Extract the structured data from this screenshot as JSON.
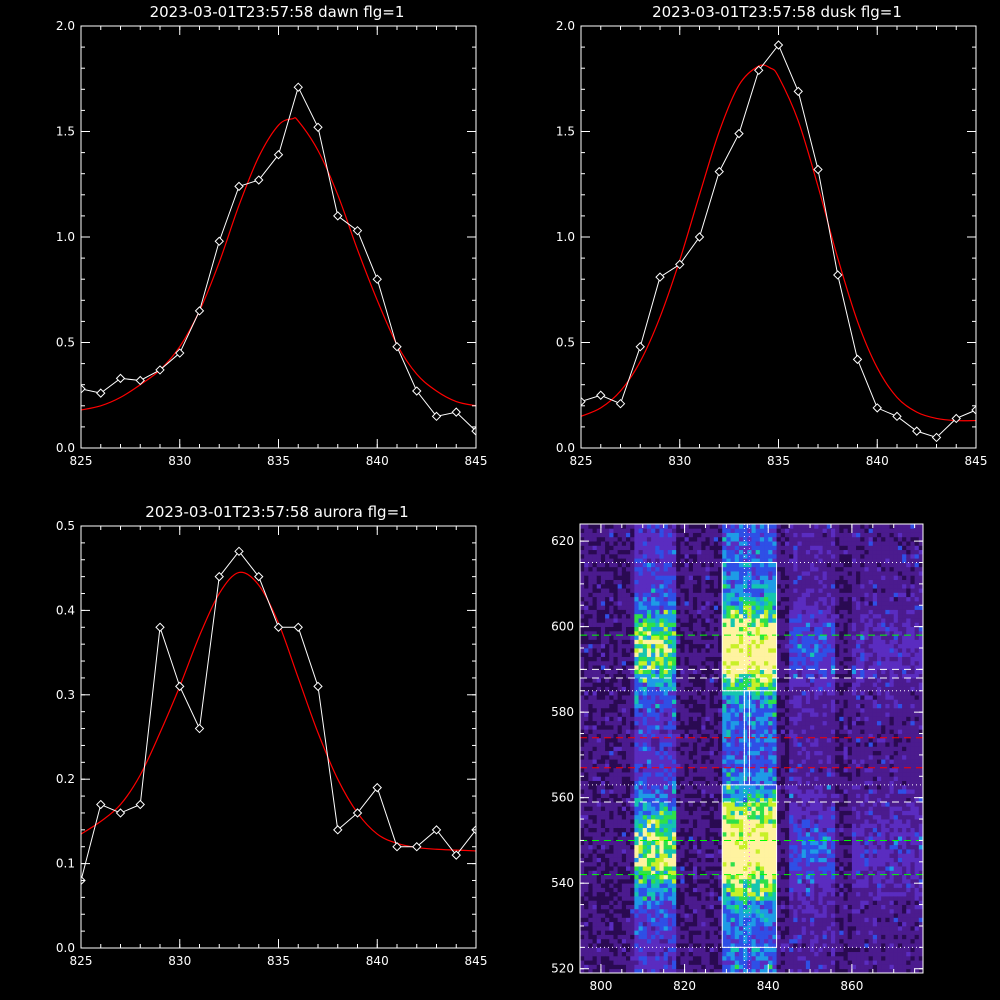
{
  "chart_data": [
    {
      "type": "line",
      "title": "2023-03-01T23:57:58 dawn flg=1",
      "xlim": [
        825,
        845
      ],
      "ylim": [
        0.0,
        2.0
      ],
      "xticks": [
        825,
        830,
        835,
        840,
        845
      ],
      "xtick_labels": [
        "825",
        "830",
        "835",
        "840",
        "845"
      ],
      "yticks": [
        0.0,
        0.5,
        1.0,
        1.5,
        2.0
      ],
      "ytick_labels": [
        "0.0",
        "0.5",
        "1.0",
        "1.5",
        "2.0"
      ],
      "series": [
        {
          "kind": "observed",
          "color": "#ffffff",
          "marker": "diamond",
          "x": [
            825,
            826,
            827,
            828,
            829,
            830,
            831,
            832,
            833,
            834,
            835,
            836,
            837,
            838,
            839,
            840,
            841,
            842,
            843,
            844,
            845
          ],
          "y": [
            0.28,
            0.26,
            0.33,
            0.32,
            0.37,
            0.45,
            0.65,
            0.98,
            1.24,
            1.27,
            1.39,
            1.71,
            1.52,
            1.1,
            1.03,
            0.8,
            0.48,
            0.27,
            0.15,
            0.17,
            0.08
          ]
        },
        {
          "kind": "fit",
          "color": "#ff0000",
          "marker": "none",
          "x": [
            825,
            826,
            827,
            828,
            829,
            830,
            831,
            832,
            833,
            834,
            835,
            835.7,
            836,
            837,
            838,
            839,
            840,
            841,
            842,
            843,
            844,
            845
          ],
          "y": [
            0.18,
            0.2,
            0.24,
            0.3,
            0.37,
            0.48,
            0.65,
            0.88,
            1.15,
            1.38,
            1.53,
            1.56,
            1.55,
            1.41,
            1.2,
            0.94,
            0.7,
            0.49,
            0.35,
            0.27,
            0.22,
            0.2
          ]
        }
      ]
    },
    {
      "type": "line",
      "title": "2023-03-01T23:57:58 dusk flg=1",
      "xlim": [
        825,
        845
      ],
      "ylim": [
        0.0,
        2.0
      ],
      "xticks": [
        825,
        830,
        835,
        840,
        845
      ],
      "xtick_labels": [
        "825",
        "830",
        "835",
        "840",
        "845"
      ],
      "yticks": [
        0.0,
        0.5,
        1.0,
        1.5,
        2.0
      ],
      "ytick_labels": [
        "0.0",
        "0.5",
        "1.0",
        "1.5",
        "2.0"
      ],
      "series": [
        {
          "kind": "observed",
          "color": "#ffffff",
          "marker": "diamond",
          "x": [
            825,
            826,
            827,
            828,
            829,
            830,
            831,
            832,
            833,
            834,
            835,
            836,
            837,
            838,
            839,
            840,
            841,
            842,
            843,
            844,
            845
          ],
          "y": [
            0.22,
            0.25,
            0.21,
            0.48,
            0.81,
            0.87,
            1.0,
            1.31,
            1.49,
            1.79,
            1.91,
            1.69,
            1.32,
            0.82,
            0.42,
            0.19,
            0.15,
            0.08,
            0.05,
            0.14,
            0.18
          ]
        },
        {
          "kind": "fit",
          "color": "#ff0000",
          "marker": "none",
          "x": [
            825,
            826,
            827,
            828,
            829,
            830,
            831,
            832,
            833,
            834,
            834.6,
            835,
            836,
            837,
            838,
            839,
            840,
            841,
            842,
            843,
            844,
            845
          ],
          "y": [
            0.15,
            0.19,
            0.27,
            0.41,
            0.62,
            0.89,
            1.2,
            1.5,
            1.72,
            1.81,
            1.8,
            1.76,
            1.55,
            1.24,
            0.9,
            0.6,
            0.38,
            0.24,
            0.17,
            0.14,
            0.13,
            0.13
          ]
        }
      ]
    },
    {
      "type": "line",
      "title": "2023-03-01T23:57:58 aurora flg=1",
      "xlim": [
        825,
        845
      ],
      "ylim": [
        0.0,
        0.5
      ],
      "xticks": [
        825,
        830,
        835,
        840,
        845
      ],
      "xtick_labels": [
        "825",
        "830",
        "835",
        "840",
        "845"
      ],
      "yticks": [
        0.0,
        0.1,
        0.2,
        0.3,
        0.4,
        0.5
      ],
      "ytick_labels": [
        "0.0",
        "0.1",
        "0.2",
        "0.3",
        "0.4",
        "0.5"
      ],
      "series": [
        {
          "kind": "observed",
          "color": "#ffffff",
          "marker": "diamond",
          "x": [
            825,
            826,
            827,
            828,
            829,
            830,
            831,
            832,
            833,
            834,
            835,
            836,
            837,
            838,
            839,
            840,
            841,
            842,
            843,
            844,
            845
          ],
          "y": [
            0.08,
            0.17,
            0.16,
            0.17,
            0.38,
            0.31,
            0.26,
            0.44,
            0.47,
            0.44,
            0.38,
            0.38,
            0.31,
            0.14,
            0.16,
            0.19,
            0.12,
            0.12,
            0.14,
            0.11,
            0.14
          ]
        },
        {
          "kind": "fit",
          "color": "#ff0000",
          "marker": "none",
          "x": [
            825,
            826,
            827,
            828,
            829,
            830,
            831,
            832,
            833,
            834,
            835,
            836,
            837,
            838,
            839,
            840,
            841,
            842,
            843,
            844,
            845
          ],
          "y": [
            0.135,
            0.15,
            0.17,
            0.205,
            0.255,
            0.31,
            0.37,
            0.42,
            0.445,
            0.43,
            0.385,
            0.32,
            0.255,
            0.2,
            0.16,
            0.135,
            0.124,
            0.119,
            0.117,
            0.116,
            0.115
          ]
        }
      ]
    },
    {
      "type": "heatmap",
      "xlim": [
        795,
        877
      ],
      "ylim": [
        519,
        624
      ],
      "xticks": [
        800,
        820,
        840,
        860
      ],
      "xtick_labels": [
        "800",
        "820",
        "840",
        "860"
      ],
      "yticks": [
        520,
        540,
        560,
        580,
        600,
        620
      ],
      "ytick_labels": [
        "520",
        "540",
        "560",
        "580",
        "600",
        "620"
      ],
      "colormap": [
        "#000000",
        "#2a0a52",
        "#4b1b8e",
        "#5a2cc0",
        "#2f4fe6",
        "#1e9be6",
        "#15c5b0",
        "#2ee04a",
        "#c8f028",
        "#fff3a0"
      ],
      "bright_bands_x": [
        {
          "x_range": [
            829,
            842
          ],
          "intensity": 0.95
        },
        {
          "x_range": [
            808,
            818
          ],
          "intensity": 0.6
        },
        {
          "x_range": [
            845,
            856
          ],
          "intensity": 0.22
        },
        {
          "x_range": [
            860,
            877
          ],
          "intensity": 0.12
        }
      ],
      "bright_bands_y": [
        {
          "center": 595,
          "width": 9,
          "gain": 1.0
        },
        {
          "center": 548,
          "width": 10,
          "gain": 1.1
        }
      ],
      "boxes": [
        {
          "x_range": [
            829,
            842
          ],
          "y_range": [
            585,
            615
          ],
          "color": "#ffffff"
        },
        {
          "x_range": [
            829,
            842
          ],
          "y_range": [
            525,
            563
          ],
          "color": "#ffffff"
        }
      ],
      "hlines": [
        {
          "y": 615,
          "color": "#ffffff",
          "style": "dotted"
        },
        {
          "y": 585,
          "color": "#ffffff",
          "style": "dotted"
        },
        {
          "y": 563,
          "color": "#ffffff",
          "style": "dotted"
        },
        {
          "y": 525,
          "color": "#ffffff",
          "style": "dotted"
        },
        {
          "y": 598,
          "color": "#00ff00",
          "style": "dashed"
        },
        {
          "y": 590,
          "color": "#ffffff",
          "style": "dashed"
        },
        {
          "y": 588,
          "color": "#ffffff",
          "style": "dashed"
        },
        {
          "y": 574,
          "color": "#ff0000",
          "style": "dashed"
        },
        {
          "y": 567,
          "color": "#ff0000",
          "style": "dashed"
        },
        {
          "y": 559,
          "color": "#ffffff",
          "style": "dashed"
        },
        {
          "y": 550,
          "color": "#00ff00",
          "style": "dashed"
        },
        {
          "y": 542,
          "color": "#00ff00",
          "style": "dashed"
        }
      ],
      "vlines": [
        {
          "x": 834.3,
          "color": "#ffffff",
          "style": "dotted"
        },
        {
          "x": 835.5,
          "color": "#ff66ff",
          "style": "dotted"
        }
      ]
    }
  ]
}
